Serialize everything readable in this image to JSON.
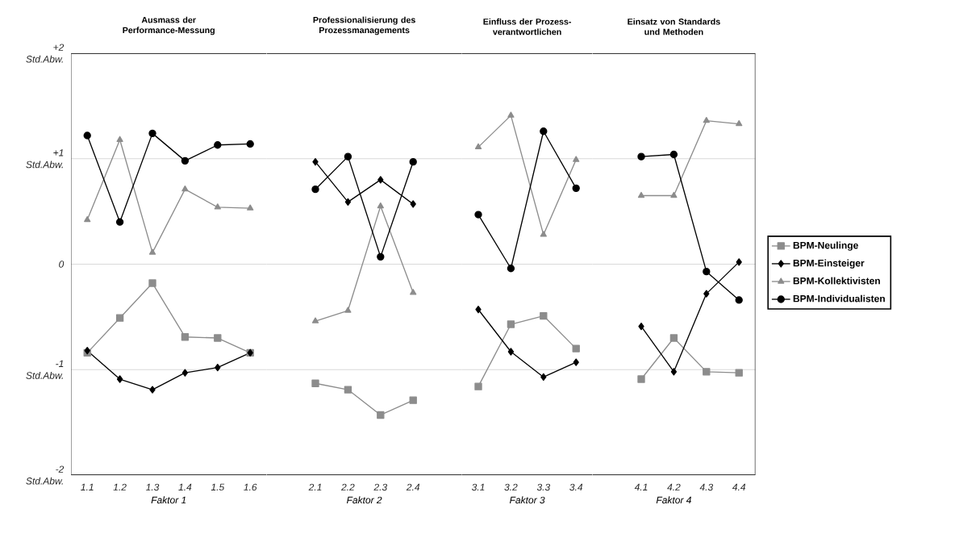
{
  "chart_data": [
    {
      "type": "line",
      "title": "Ausmass der Performance-Messung",
      "xlabel": "Faktor 1",
      "categories": [
        "1.1",
        "1.2",
        "1.3",
        "1.4",
        "1.5",
        "1.6"
      ],
      "ylim": [
        -2,
        2
      ],
      "yticks": [
        {
          "value": 2,
          "label": "+2 Std.Abw."
        },
        {
          "value": 1,
          "label": "+1 Std.Abw."
        },
        0,
        {
          "value": -1,
          "label": "-1 Std.Abw."
        },
        {
          "value": -2,
          "label": "-2 Std.Abw."
        }
      ],
      "grid": "y",
      "series": [
        {
          "color": "#8c8c8c",
          "marker": "square",
          "values": [
            -0.84,
            -0.51,
            -0.18,
            -0.69,
            -0.7,
            -0.84
          ]
        },
        {
          "color": "#000000",
          "marker": "diamond",
          "values": [
            -0.82,
            -1.09,
            -1.19,
            -1.03,
            -0.98,
            -0.84
          ]
        },
        {
          "color": "#8c8c8c",
          "marker": "triangle",
          "values": [
            0.42,
            1.18,
            0.11,
            0.71,
            0.54,
            0.53
          ]
        },
        {
          "color": "#000000",
          "marker": "circle",
          "values": [
            1.22,
            0.4,
            1.24,
            0.98,
            1.13,
            1.14
          ]
        }
      ]
    },
    {
      "type": "line",
      "title": "Professionalisierung des Prozessmanagements",
      "xlabel": "Faktor 2",
      "categories": [
        "2.1",
        "2.2",
        "2.3",
        "2.4"
      ],
      "ylim": [
        -2,
        2
      ],
      "yticks": [
        {
          "value": 2,
          "label": null
        },
        {
          "value": 1,
          "label": null
        },
        {
          "value": 0,
          "label": null
        },
        {
          "value": -1,
          "label": null
        },
        {
          "value": -2,
          "label": null
        }
      ],
      "grid": "y",
      "tick_labels": "x",
      "series": [
        {
          "color": "#8c8c8c",
          "marker": "square",
          "values": [
            -1.13,
            -1.19,
            -1.43,
            -1.29
          ]
        },
        {
          "color": "#000000",
          "marker": "diamond",
          "values": [
            0.97,
            0.59,
            0.8,
            0.57
          ]
        },
        {
          "color": "#8c8c8c",
          "marker": "triangle",
          "values": [
            -0.54,
            -0.44,
            0.55,
            -0.27
          ]
        },
        {
          "color": "#000000",
          "marker": "circle",
          "values": [
            0.71,
            1.02,
            0.07,
            0.97
          ]
        }
      ]
    },
    {
      "type": "line",
      "title": "Einfluss der Prozess-verantwortlichen",
      "xlabel": "Faktor 3",
      "categories": [
        "3.1",
        "3.2",
        "3.3",
        "3.4"
      ],
      "ylim": [
        -2,
        2
      ],
      "yticks": [
        {
          "value": 2,
          "label": null
        },
        {
          "value": 1,
          "label": null
        },
        {
          "value": 0,
          "label": null
        },
        {
          "value": -1,
          "label": null
        },
        {
          "value": -2,
          "label": null
        }
      ],
      "grid": "y",
      "tick_labels": "x",
      "series": [
        {
          "color": "#8c8c8c",
          "marker": "square",
          "values": [
            -1.16,
            -0.57,
            -0.49,
            -0.8
          ]
        },
        {
          "color": "#000000",
          "marker": "diamond",
          "values": [
            -0.43,
            -0.83,
            -1.07,
            -0.93
          ]
        },
        {
          "color": "#8c8c8c",
          "marker": "triangle",
          "values": [
            1.11,
            1.41,
            0.28,
            0.99
          ]
        },
        {
          "color": "#000000",
          "marker": "circle",
          "values": [
            0.47,
            -0.04,
            1.26,
            0.72
          ]
        }
      ]
    },
    {
      "type": "line",
      "title": "Einsatz von Standards und Methoden",
      "xlabel": "Faktor 4",
      "categories": [
        "4.1",
        "4.2",
        "4.3",
        "4.4"
      ],
      "ylim": [
        -2,
        2
      ],
      "yticks": [
        {
          "value": 2,
          "label": null
        },
        {
          "value": 1,
          "label": null
        },
        {
          "value": 0,
          "label": null
        },
        {
          "value": -1,
          "label": null
        },
        {
          "value": -2,
          "label": null
        }
      ],
      "grid": "y",
      "tick_labels": "x",
      "legend": "right",
      "series": [
        {
          "name": "BPM-Neulinge",
          "color": "#8c8c8c",
          "marker": "square",
          "values": [
            -1.09,
            -0.7,
            -1.02,
            -1.03
          ]
        },
        {
          "name": "BPM-Einsteiger",
          "color": "#000000",
          "marker": "diamond",
          "values": [
            -0.59,
            -1.02,
            -0.28,
            0.02
          ]
        },
        {
          "name": "BPM-Kollektivisten",
          "color": "#8c8c8c",
          "marker": "triangle",
          "values": [
            0.65,
            0.65,
            1.36,
            1.33
          ]
        },
        {
          "name": "BPM-Individualisten",
          "color": "#000000",
          "marker": "circle",
          "values": [
            1.02,
            1.04,
            -0.07,
            -0.34
          ]
        }
      ]
    }
  ]
}
